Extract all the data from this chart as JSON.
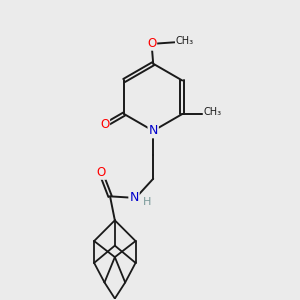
{
  "background_color": "#ebebeb",
  "bond_color": "#1a1a1a",
  "atom_colors": {
    "O": "#ff0000",
    "N": "#0000cc",
    "H": "#7a9a9a",
    "C": "#1a1a1a"
  }
}
